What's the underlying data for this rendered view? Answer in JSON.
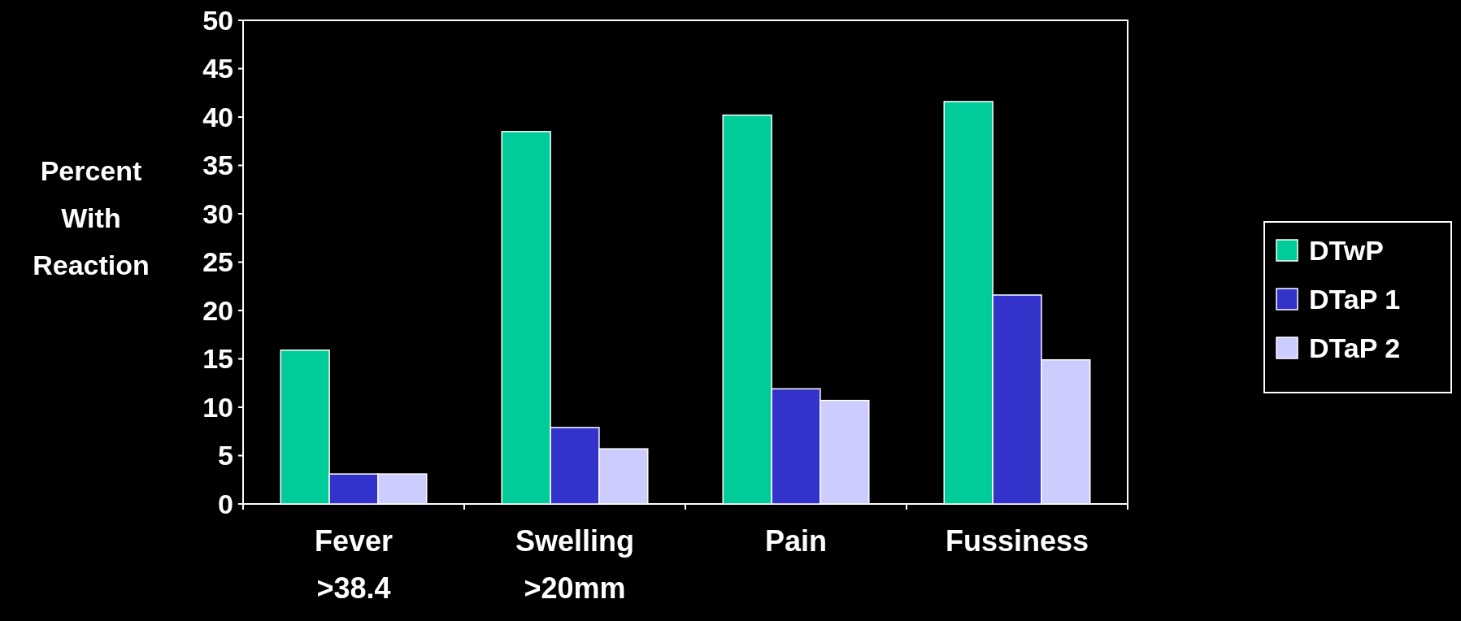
{
  "chart_data": {
    "type": "bar",
    "ylabel": "Percent With Reaction",
    "categories": [
      "Fever >38.4",
      "Swelling >20mm",
      "Pain",
      "Fussiness"
    ],
    "series": [
      {
        "name": "DTwP",
        "color": "#00cc99",
        "values": [
          15.9,
          38.5,
          40.2,
          41.6
        ]
      },
      {
        "name": "DTaP 1",
        "color": "#3333cc",
        "values": [
          3.1,
          7.9,
          11.9,
          21.6
        ]
      },
      {
        "name": "DTaP 2",
        "color": "#ccccff",
        "values": [
          3.1,
          5.7,
          10.7,
          14.9
        ]
      }
    ],
    "ylim": [
      0,
      50
    ],
    "yticks": [
      0,
      5,
      10,
      15,
      20,
      25,
      30,
      35,
      40,
      45,
      50
    ],
    "grid": false,
    "legend": "right"
  }
}
